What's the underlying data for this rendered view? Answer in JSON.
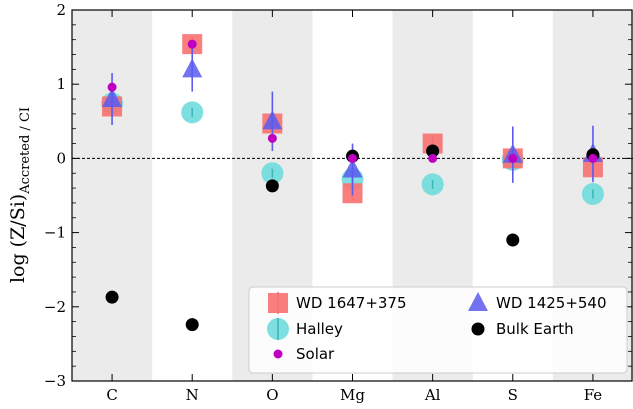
{
  "chart_data": {
    "type": "scatter",
    "title": "",
    "xlabel": "",
    "ylabel_main": "log (Z/Si)",
    "ylabel_sub": "Accreted / CI",
    "categories": [
      "C",
      "N",
      "O",
      "Mg",
      "Al",
      "S",
      "Fe"
    ],
    "ylim": [
      -3,
      2
    ],
    "yticks": [
      -3,
      -2,
      -1,
      0,
      1,
      2
    ],
    "ytick_labels": [
      "−3",
      "−2",
      "−1",
      "0",
      "1",
      "2"
    ],
    "reference_line": 0,
    "shaded_categories": [
      "C",
      "O",
      "Al",
      "Fe"
    ],
    "shade_color": "#ebebeb",
    "legend": "lower-right",
    "series": [
      {
        "name": "WD 1647+375",
        "marker": "square",
        "color": "#f87171",
        "points": [
          {
            "x": "C",
            "y": 0.7,
            "err": 0.12
          },
          {
            "x": "N",
            "y": 1.54,
            "err": 0.1
          },
          {
            "x": "O",
            "y": 0.47,
            "err": 0.12
          },
          {
            "x": "Mg",
            "y": -0.47,
            "err": 0.1
          },
          {
            "x": "Al",
            "y": 0.2,
            "err": 0.1
          },
          {
            "x": "S",
            "y": 0.0,
            "err": 0.1
          },
          {
            "x": "Fe",
            "y": -0.12,
            "err": 0.1
          }
        ]
      },
      {
        "name": "WD 1425+540",
        "marker": "triangle",
        "color": "#5b5bf0",
        "points": [
          {
            "x": "C",
            "y": 0.8,
            "err": 0.35
          },
          {
            "x": "N",
            "y": 1.2,
            "err": 0.3
          },
          {
            "x": "O",
            "y": 0.5,
            "err": 0.4
          },
          {
            "x": "Mg",
            "y": -0.15,
            "err": 0.35
          },
          {
            "x": "S",
            "y": 0.05,
            "err": 0.38
          },
          {
            "x": "Fe",
            "y": 0.06,
            "err": 0.38
          }
        ]
      },
      {
        "name": "Halley",
        "marker": "circle-large",
        "color": "#6fdcdc",
        "points": [
          {
            "x": "C",
            "y": 0.74,
            "err": 0.06
          },
          {
            "x": "N",
            "y": 0.62,
            "err": 0.06
          },
          {
            "x": "O",
            "y": -0.2,
            "err": 0.06
          },
          {
            "x": "Mg",
            "y": -0.28,
            "err": 0.06
          },
          {
            "x": "Al",
            "y": -0.35,
            "err": 0.06
          },
          {
            "x": "S",
            "y": -0.02,
            "err": 0.2
          },
          {
            "x": "Fe",
            "y": -0.48,
            "err": 0.06
          }
        ]
      },
      {
        "name": "Bulk Earth",
        "marker": "circle",
        "color": "#000000",
        "points": [
          {
            "x": "C",
            "y": -1.87
          },
          {
            "x": "N",
            "y": -2.24
          },
          {
            "x": "O",
            "y": -0.37
          },
          {
            "x": "Mg",
            "y": 0.03
          },
          {
            "x": "Al",
            "y": 0.1
          },
          {
            "x": "S",
            "y": -1.1
          },
          {
            "x": "Fe",
            "y": 0.05
          }
        ]
      },
      {
        "name": "Solar",
        "marker": "circle-small",
        "color": "#c000c0",
        "points": [
          {
            "x": "C",
            "y": 0.96
          },
          {
            "x": "N",
            "y": 1.54
          },
          {
            "x": "O",
            "y": 0.27
          },
          {
            "x": "Mg",
            "y": 0.0
          },
          {
            "x": "Al",
            "y": 0.0
          },
          {
            "x": "S",
            "y": 0.0
          },
          {
            "x": "Fe",
            "y": 0.0
          }
        ]
      }
    ],
    "legend_entries": [
      {
        "label": "WD 1647+375",
        "marker": "square",
        "color": "#f87171"
      },
      {
        "label": "WD 1425+540",
        "marker": "triangle",
        "color": "#5b5bf0"
      },
      {
        "label": "Halley",
        "marker": "circle-large",
        "color": "#6fdcdc"
      },
      {
        "label": "Bulk Earth",
        "marker": "circle",
        "color": "#000000"
      },
      {
        "label": "Solar",
        "marker": "circle-small",
        "color": "#c000c0"
      }
    ]
  }
}
